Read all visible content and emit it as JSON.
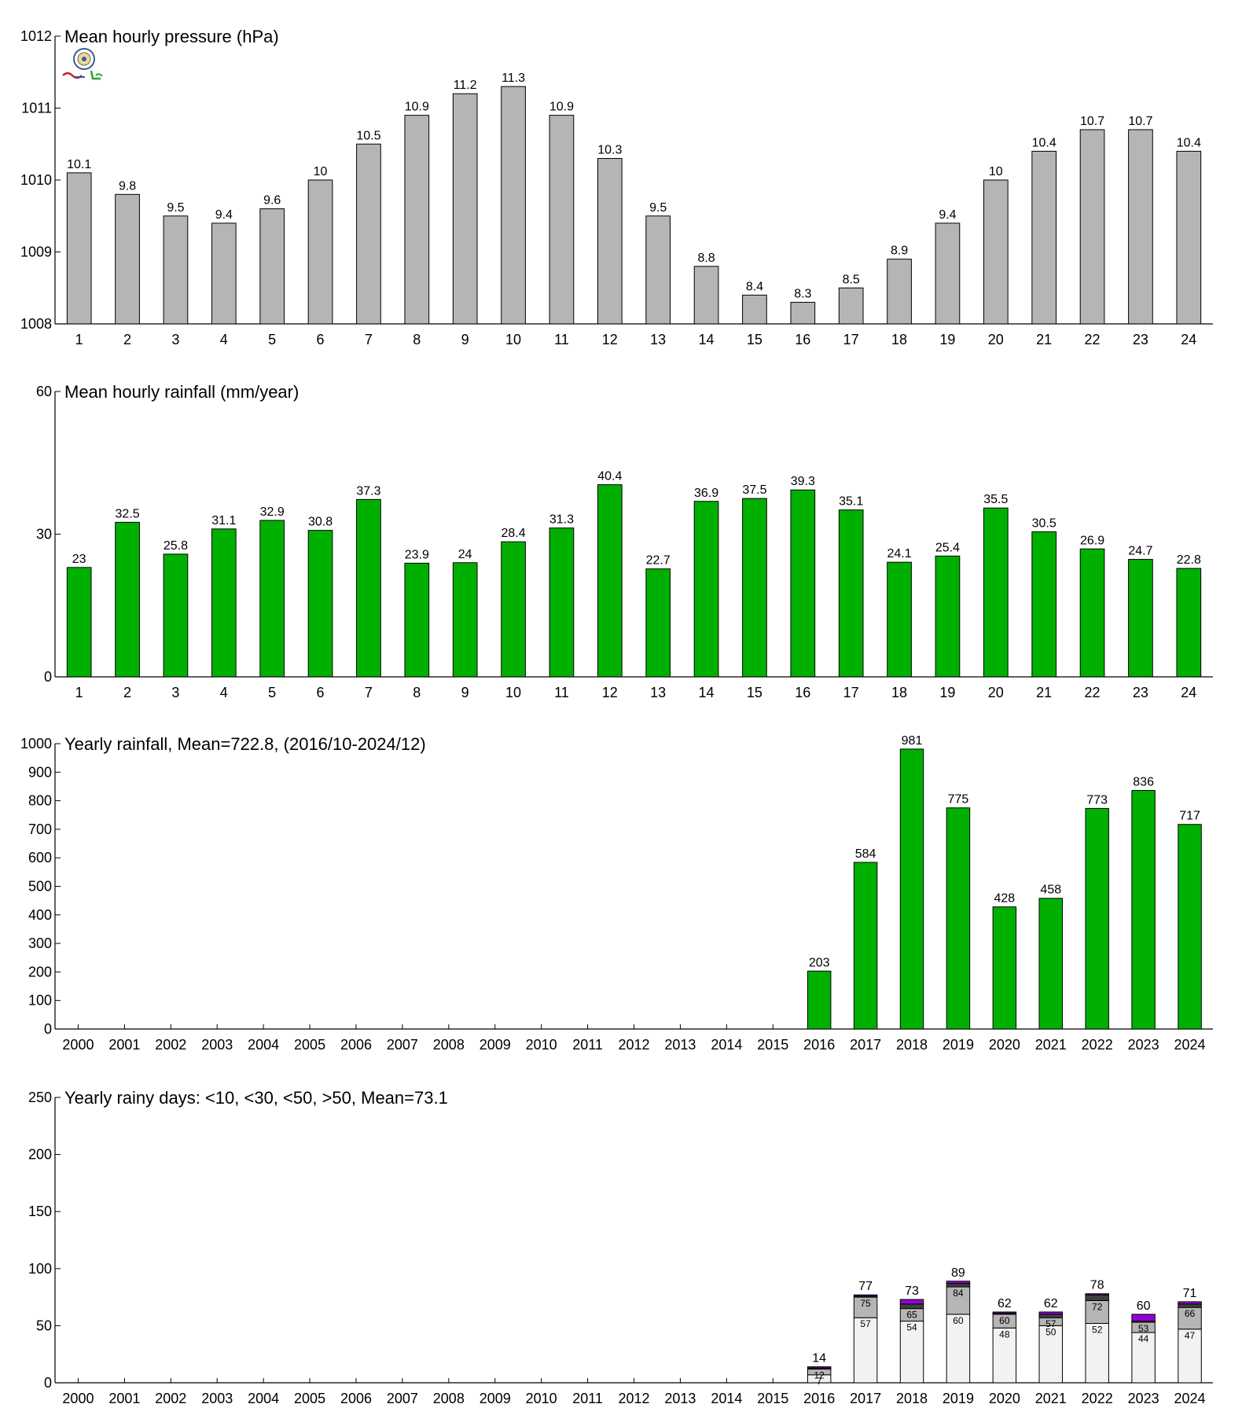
{
  "chart_data": [
    {
      "type": "bar",
      "title": "Mean hourly pressure (hPa)",
      "categories": [
        "1",
        "2",
        "3",
        "4",
        "5",
        "6",
        "7",
        "8",
        "9",
        "10",
        "11",
        "12",
        "13",
        "14",
        "15",
        "16",
        "17",
        "18",
        "19",
        "20",
        "21",
        "22",
        "23",
        "24"
      ],
      "values": [
        1010.1,
        1009.8,
        1009.5,
        1009.4,
        1009.6,
        1010.0,
        1010.5,
        1010.9,
        1011.2,
        1011.3,
        1010.9,
        1010.3,
        1009.5,
        1008.8,
        1008.4,
        1008.3,
        1008.5,
        1008.9,
        1009.4,
        1010.0,
        1010.4,
        1010.7,
        1010.7,
        1010.4
      ],
      "data_labels": [
        "10.1",
        "9.8",
        "9.5",
        "9.4",
        "9.6",
        "10",
        "10.5",
        "10.9",
        "11.2",
        "11.3",
        "10.9",
        "10.3",
        "9.5",
        "8.8",
        "8.4",
        "8.3",
        "8.5",
        "8.9",
        "9.4",
        "10",
        "10.4",
        "10.7",
        "10.7",
        "10.4"
      ],
      "ylim": [
        1008,
        1012
      ],
      "yticks": [
        "1008",
        "1009",
        "1010",
        "1011",
        "1012"
      ],
      "color": "#b5b5b5"
    },
    {
      "type": "bar",
      "title": "Mean hourly rainfall (mm/year)",
      "categories": [
        "1",
        "2",
        "3",
        "4",
        "5",
        "6",
        "7",
        "8",
        "9",
        "10",
        "11",
        "12",
        "13",
        "14",
        "15",
        "16",
        "17",
        "18",
        "19",
        "20",
        "21",
        "22",
        "23",
        "24"
      ],
      "values": [
        23,
        32.5,
        25.8,
        31.1,
        32.9,
        30.8,
        37.3,
        23.9,
        24,
        28.4,
        31.3,
        40.4,
        22.7,
        36.9,
        37.5,
        39.3,
        35.1,
        24.1,
        25.4,
        35.5,
        30.5,
        26.9,
        24.7,
        22.8
      ],
      "data_labels": [
        "23",
        "32.5",
        "25.8",
        "31.1",
        "32.9",
        "30.8",
        "37.3",
        "23.9",
        "24",
        "28.4",
        "31.3",
        "40.4",
        "22.7",
        "36.9",
        "37.5",
        "39.3",
        "35.1",
        "24.1",
        "25.4",
        "35.5",
        "30.5",
        "26.9",
        "24.7",
        "22.8"
      ],
      "ylim": [
        0,
        60
      ],
      "yticks": [
        "0",
        "30",
        "60"
      ],
      "color": "#00b000"
    },
    {
      "type": "bar",
      "title": "Yearly rainfall, Mean=722.8, (2016/10-2024/12)",
      "categories": [
        "2000",
        "2001",
        "2002",
        "2003",
        "2004",
        "2005",
        "2006",
        "2007",
        "2008",
        "2009",
        "2010",
        "2011",
        "2012",
        "2013",
        "2014",
        "2015",
        "2016",
        "2017",
        "2018",
        "2019",
        "2020",
        "2021",
        "2022",
        "2023",
        "2024"
      ],
      "values": [
        null,
        null,
        null,
        null,
        null,
        null,
        null,
        null,
        null,
        null,
        null,
        null,
        null,
        null,
        null,
        null,
        203,
        584,
        981,
        775,
        428,
        458,
        773,
        836,
        717
      ],
      "data_labels": [
        "",
        "",
        "",
        "",
        "",
        "",
        "",
        "",
        "",
        "",
        "",
        "",
        "",
        "",
        "",
        "",
        "203",
        "584",
        "981",
        "775",
        "428",
        "458",
        "773",
        "836",
        "717"
      ],
      "ylim": [
        0,
        1000
      ],
      "yticks": [
        "0",
        "100",
        "200",
        "300",
        "400",
        "500",
        "600",
        "700",
        "800",
        "900",
        "1000"
      ],
      "color": "#00b000"
    },
    {
      "type": "bar",
      "stacked": true,
      "title": "Yearly rainy days: <10, <30, <50, >50, Mean=73.1",
      "categories": [
        "2000",
        "2001",
        "2002",
        "2003",
        "2004",
        "2005",
        "2006",
        "2007",
        "2008",
        "2009",
        "2010",
        "2011",
        "2012",
        "2013",
        "2014",
        "2015",
        "2016",
        "2017",
        "2018",
        "2019",
        "2020",
        "2021",
        "2022",
        "2023",
        "2024"
      ],
      "cumulative": [
        null,
        null,
        null,
        null,
        null,
        null,
        null,
        null,
        null,
        null,
        null,
        null,
        null,
        null,
        null,
        null,
        [
          7,
          12,
          13,
          14
        ],
        [
          57,
          75,
          76,
          77
        ],
        [
          54,
          65,
          69,
          73
        ],
        [
          60,
          84,
          87,
          89
        ],
        [
          48,
          60,
          61,
          62
        ],
        [
          50,
          57,
          60,
          62
        ],
        [
          52,
          72,
          77,
          78
        ],
        [
          44,
          53,
          54,
          60
        ],
        [
          47,
          66,
          69,
          71
        ]
      ],
      "segment_labels": [
        null,
        null,
        null,
        null,
        null,
        null,
        null,
        null,
        null,
        null,
        null,
        null,
        null,
        null,
        null,
        null,
        [
          "7",
          "12"
        ],
        [
          "57",
          "75"
        ],
        [
          "54",
          "65"
        ],
        [
          "60",
          "84"
        ],
        [
          "48",
          "60"
        ],
        [
          "50",
          "57"
        ],
        [
          "52",
          "72"
        ],
        [
          "44",
          "53"
        ],
        [
          "47",
          "66"
        ]
      ],
      "totals": [
        "",
        "",
        "",
        "",
        "",
        "",
        "",
        "",
        "",
        "",
        "",
        "",
        "",
        "",
        "",
        "",
        "14",
        "77",
        "73",
        "89",
        "62",
        "62",
        "78",
        "60",
        "71"
      ],
      "ylim": [
        0,
        250
      ],
      "yticks": [
        "0",
        "50",
        "100",
        "150",
        "200",
        "250"
      ],
      "segment_colors": [
        "#f2f2f2",
        "#b5b5b5",
        "#404040",
        "#9400d3"
      ]
    }
  ]
}
